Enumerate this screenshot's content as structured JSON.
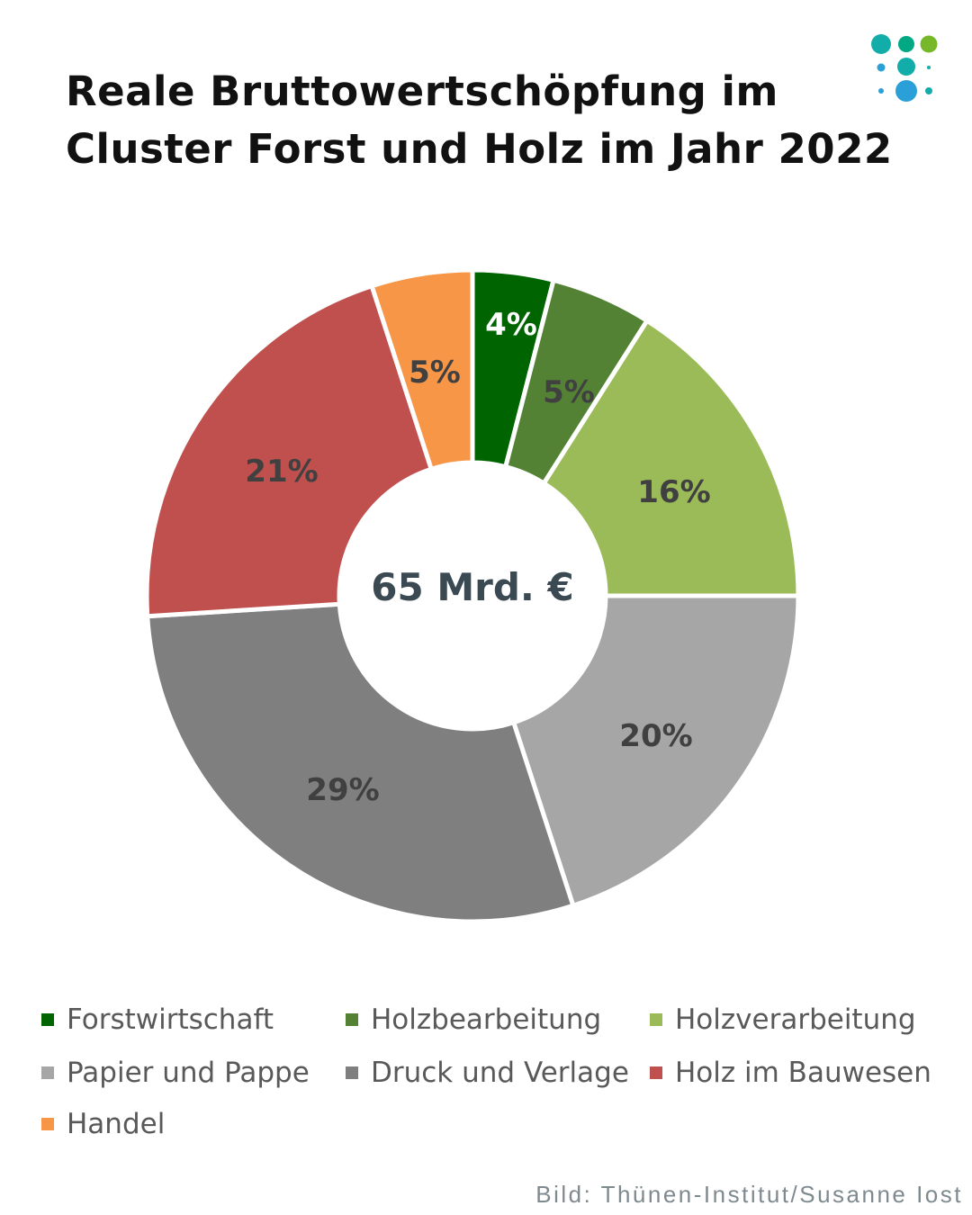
{
  "title_line1": "Reale Bruttowertschöpfung im",
  "title_line2": "Cluster Forst und Holz im Jahr 2022",
  "credit": "Bild: Thünen-Institut/Susanne Iost",
  "chart_data": {
    "type": "pie",
    "variant": "donut",
    "title": "Reale Bruttowertschöpfung im Cluster Forst und Holz im Jahr 2022",
    "center_label": "65 Mrd. €",
    "unit": "%",
    "legend_position": "bottom",
    "slices": [
      {
        "name": "Forstwirtschaft",
        "value": 4,
        "label": "4%",
        "color": "#006400",
        "label_color": "#ffffff"
      },
      {
        "name": "Holzbearbeitung",
        "value": 5,
        "label": "5%",
        "color": "#548235",
        "label_color": "#404040"
      },
      {
        "name": "Holzverarbeitung",
        "value": 16,
        "label": "16%",
        "color": "#9BBB59",
        "label_color": "#404040"
      },
      {
        "name": "Papier und Pappe",
        "value": 20,
        "label": "20%",
        "color": "#A6A6A6",
        "label_color": "#404040"
      },
      {
        "name": "Druck und Verlage",
        "value": 29,
        "label": "29%",
        "color": "#7F7F7F",
        "label_color": "#404040"
      },
      {
        "name": "Holz im Bauwesen",
        "value": 21,
        "label": "21%",
        "color": "#C0504D",
        "label_color": "#404040"
      },
      {
        "name": "Handel",
        "value": 5,
        "label": "5%",
        "color": "#F79646",
        "label_color": "#404040"
      }
    ]
  }
}
